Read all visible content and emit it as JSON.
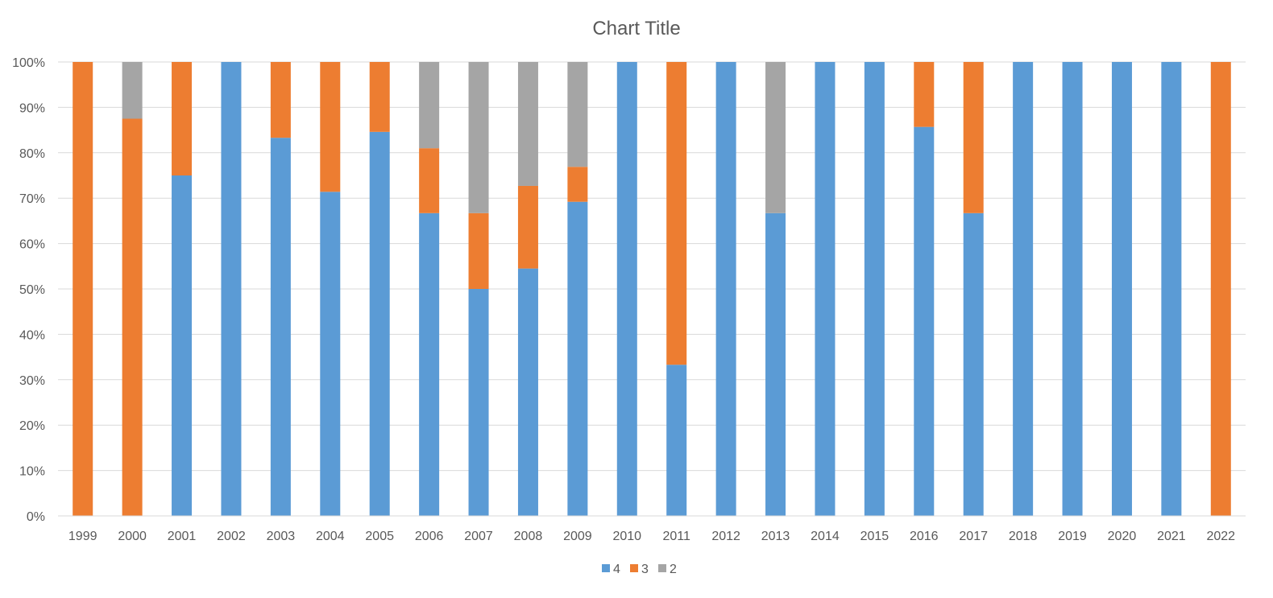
{
  "chart_data": {
    "type": "bar",
    "stacked": "percent",
    "title": "Chart Title",
    "xlabel": "",
    "ylabel": "",
    "ylim": [
      0,
      100
    ],
    "y_ticks": [
      "0%",
      "10%",
      "20%",
      "30%",
      "40%",
      "50%",
      "60%",
      "70%",
      "80%",
      "90%",
      "100%"
    ],
    "grid": true,
    "legend_position": "bottom",
    "categories": [
      "1999",
      "2000",
      "2001",
      "2002",
      "2003",
      "2004",
      "2005",
      "2006",
      "2007",
      "2008",
      "2009",
      "2010",
      "2011",
      "2012",
      "2013",
      "2014",
      "2015",
      "2016",
      "2017",
      "2018",
      "2019",
      "2020",
      "2021",
      "2022"
    ],
    "series": [
      {
        "name": "4",
        "color": "#5B9BD5",
        "values": [
          0,
          0,
          75,
          100,
          83.3,
          71.4,
          84.6,
          66.7,
          50,
          54.5,
          69.2,
          100,
          33.3,
          100,
          66.7,
          100,
          100,
          85.7,
          66.7,
          100,
          100,
          100,
          100,
          0
        ]
      },
      {
        "name": "3",
        "color": "#ED7D31",
        "values": [
          100,
          87.5,
          25,
          0,
          16.7,
          28.6,
          15.4,
          14.3,
          16.7,
          18.2,
          7.7,
          0,
          66.7,
          0,
          0,
          0,
          0,
          14.3,
          33.3,
          0,
          0,
          0,
          0,
          100
        ]
      },
      {
        "name": "2",
        "color": "#A5A5A5",
        "values": [
          0,
          12.5,
          0,
          0,
          0,
          0,
          0,
          19,
          33.3,
          27.3,
          23.1,
          0,
          0,
          0,
          33.3,
          0,
          0,
          0,
          0,
          0,
          0,
          0,
          0,
          0
        ]
      }
    ]
  }
}
